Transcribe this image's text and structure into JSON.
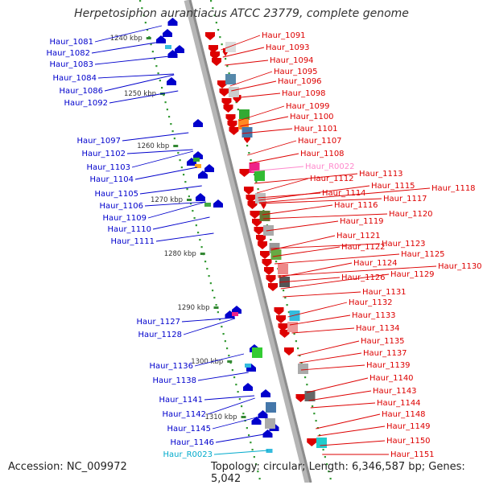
{
  "title": "Herpetosiphon aurantiacus ATCC 23779, complete genome",
  "footer": {
    "accession": "Accession: NC_009972",
    "summary": "Topology: circular; Length: 6,346,587 bp; Genes: 5,042"
  },
  "colors": {
    "forward_strand": "#0000cc",
    "reverse_strand": "#dd0000",
    "rna": "#00aacc",
    "pseudo_rna": "#ff88cc",
    "backbone": "#999999"
  },
  "scale_ticks": [
    "1240 kbp",
    "1250 kbp",
    "1260 kbp",
    "1270 kbp",
    "1280 kbp",
    "1290 kbp",
    "1300 kbp",
    "1310 kbp"
  ],
  "left_labels": [
    {
      "text": "Haur_1081",
      "color": "blue"
    },
    {
      "text": "Haur_1082",
      "color": "blue"
    },
    {
      "text": "Haur_1083",
      "color": "blue"
    },
    {
      "text": "Haur_1084",
      "color": "blue"
    },
    {
      "text": "Haur_1086",
      "color": "blue"
    },
    {
      "text": "Haur_1092",
      "color": "blue"
    },
    {
      "text": "Haur_1097",
      "color": "blue"
    },
    {
      "text": "Haur_1102",
      "color": "blue"
    },
    {
      "text": "Haur_1103",
      "color": "blue"
    },
    {
      "text": "Haur_1104",
      "color": "blue"
    },
    {
      "text": "Haur_1105",
      "color": "blue"
    },
    {
      "text": "Haur_1106",
      "color": "blue"
    },
    {
      "text": "Haur_1109",
      "color": "blue"
    },
    {
      "text": "Haur_1110",
      "color": "blue"
    },
    {
      "text": "Haur_1111",
      "color": "blue"
    },
    {
      "text": "Haur_1127",
      "color": "blue"
    },
    {
      "text": "Haur_1128",
      "color": "blue"
    },
    {
      "text": "Haur_1136",
      "color": "blue"
    },
    {
      "text": "Haur_1138",
      "color": "blue"
    },
    {
      "text": "Haur_1141",
      "color": "blue"
    },
    {
      "text": "Haur_1142",
      "color": "blue"
    },
    {
      "text": "Haur_1145",
      "color": "blue"
    },
    {
      "text": "Haur_1146",
      "color": "blue"
    },
    {
      "text": "Haur_R0023",
      "color": "cyan"
    }
  ],
  "right_labels": [
    {
      "text": "Haur_1091",
      "color": "red"
    },
    {
      "text": "Haur_1093",
      "color": "red"
    },
    {
      "text": "Haur_1094",
      "color": "red"
    },
    {
      "text": "Haur_1095",
      "color": "red"
    },
    {
      "text": "Haur_1096",
      "color": "red"
    },
    {
      "text": "Haur_1098",
      "color": "red"
    },
    {
      "text": "Haur_1099",
      "color": "red"
    },
    {
      "text": "Haur_1100",
      "color": "red"
    },
    {
      "text": "Haur_1101",
      "color": "red"
    },
    {
      "text": "Haur_1107",
      "color": "red"
    },
    {
      "text": "Haur_1108",
      "color": "red"
    },
    {
      "text": "Haur_R0022",
      "color": "pink"
    },
    {
      "text": "Haur_1112",
      "color": "red"
    },
    {
      "text": "Haur_1113",
      "color": "red"
    },
    {
      "text": "Haur_1114",
      "color": "red"
    },
    {
      "text": "Haur_1115",
      "color": "red"
    },
    {
      "text": "Haur_1116",
      "color": "red"
    },
    {
      "text": "Haur_1117",
      "color": "red"
    },
    {
      "text": "Haur_1118",
      "color": "red"
    },
    {
      "text": "Haur_1119",
      "color": "red"
    },
    {
      "text": "Haur_1120",
      "color": "red"
    },
    {
      "text": "Haur_1121",
      "color": "red"
    },
    {
      "text": "Haur_1122",
      "color": "red"
    },
    {
      "text": "Haur_1123",
      "color": "red"
    },
    {
      "text": "Haur_1124",
      "color": "red"
    },
    {
      "text": "Haur_1125",
      "color": "red"
    },
    {
      "text": "Haur_1126",
      "color": "red"
    },
    {
      "text": "Haur_1129",
      "color": "red"
    },
    {
      "text": "Haur_1130",
      "color": "red"
    },
    {
      "text": "Haur_1131",
      "color": "red"
    },
    {
      "text": "Haur_1132",
      "color": "red"
    },
    {
      "text": "Haur_1133",
      "color": "red"
    },
    {
      "text": "Haur_1134",
      "color": "red"
    },
    {
      "text": "Haur_1135",
      "color": "red"
    },
    {
      "text": "Haur_1137",
      "color": "red"
    },
    {
      "text": "Haur_1139",
      "color": "red"
    },
    {
      "text": "Haur_1140",
      "color": "red"
    },
    {
      "text": "Haur_1143",
      "color": "red"
    },
    {
      "text": "Haur_1144",
      "color": "red"
    },
    {
      "text": "Haur_1148",
      "color": "red"
    },
    {
      "text": "Haur_1149",
      "color": "red"
    },
    {
      "text": "Haur_1150",
      "color": "red"
    },
    {
      "text": "Haur_1151",
      "color": "red"
    }
  ]
}
